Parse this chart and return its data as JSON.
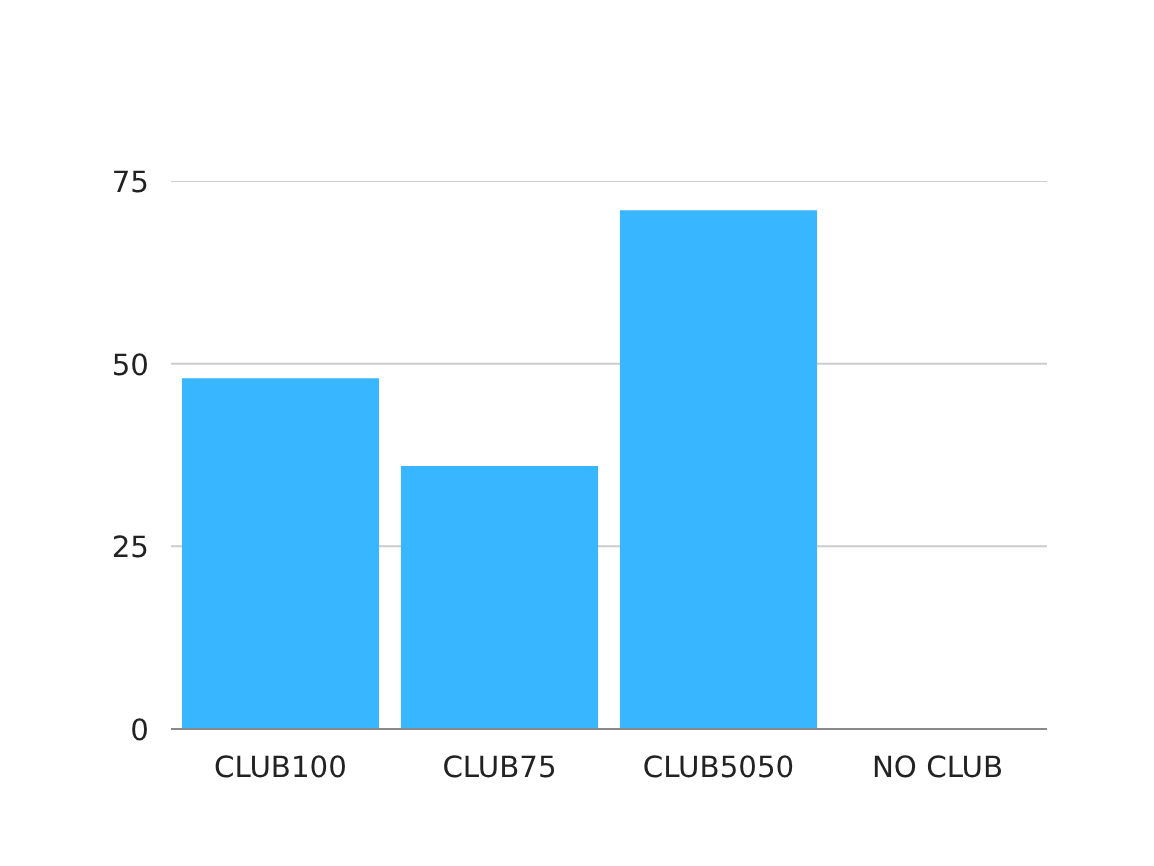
{
  "chart_data": {
    "type": "bar",
    "categories": [
      "CLUB100",
      "CLUB75",
      "CLUB5050",
      "NO CLUB"
    ],
    "values": [
      48,
      36,
      71,
      0
    ],
    "color": "#38b6ff",
    "ylim": [
      0,
      75
    ],
    "yticks": [
      0,
      25,
      50,
      75
    ],
    "grid": "y"
  }
}
